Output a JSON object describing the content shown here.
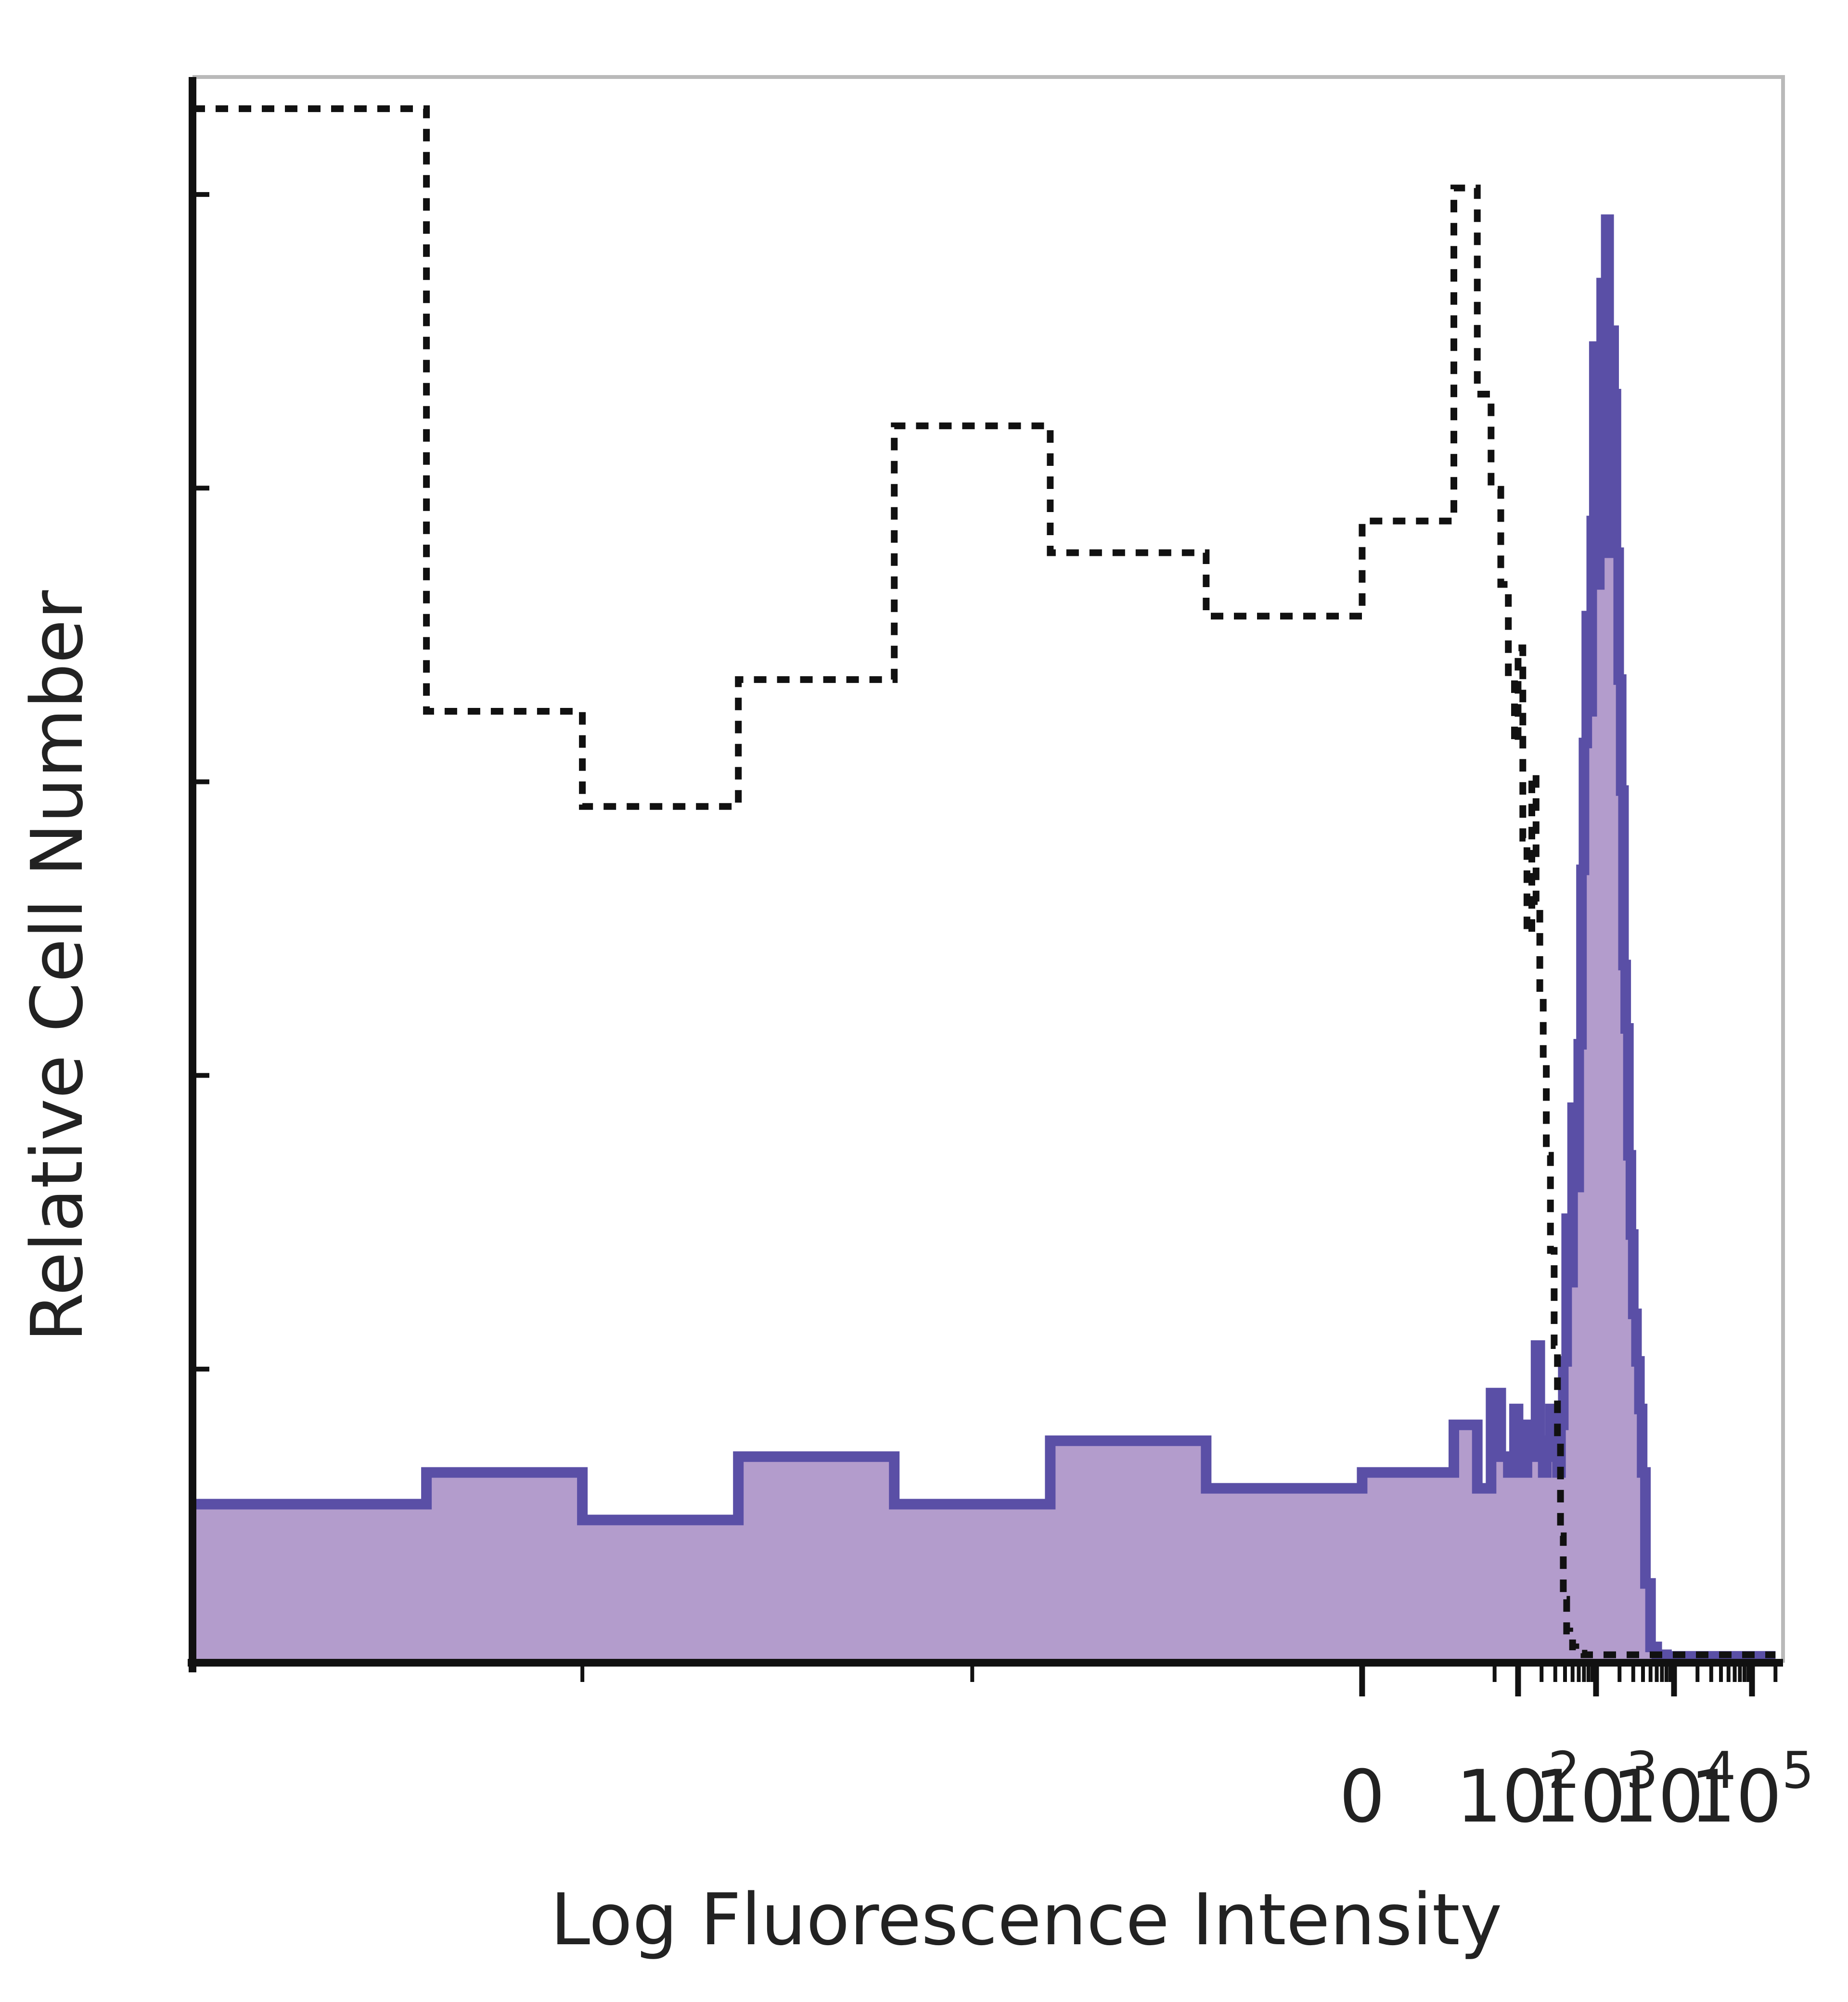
{
  "chart_data": {
    "type": "area",
    "title": "",
    "xlabel": "Log Fluorescence Intensity",
    "ylabel": "Relative Cell Number",
    "x_scale": "biexponential",
    "x_ticks": [
      {
        "value": 0,
        "base": "0",
        "exp": ""
      },
      {
        "value": 100,
        "base": "10",
        "exp": "2"
      },
      {
        "value": 1000,
        "base": "10",
        "exp": "3"
      },
      {
        "value": 10000,
        "base": "10",
        "exp": "4"
      },
      {
        "value": 100000,
        "base": "10",
        "exp": "5"
      }
    ],
    "xlim": [
      -150,
      250000
    ],
    "ylim": [
      0,
      100
    ],
    "grid": false,
    "legend": "none",
    "colors": {
      "stained_fill": "#b39ccc",
      "stained_line": "#5a4fa6",
      "control_line": "#111111",
      "axis": "#111111",
      "frame": "#b9b9b9"
    },
    "series": [
      {
        "style": "filled-solid",
        "x": [
          -150,
          -120,
          -100,
          -80,
          -60,
          -40,
          -20,
          0,
          15,
          30,
          45,
          60,
          75,
          90,
          100,
          115,
          130,
          150,
          170,
          190,
          210,
          230,
          260,
          290,
          320,
          350,
          380,
          420,
          460,
          500,
          550,
          600,
          650,
          700,
          760,
          820,
          880,
          950,
          1020,
          1100,
          1180,
          1260,
          1350,
          1450,
          1560,
          1680,
          1800,
          1950,
          2100,
          2250,
          2400,
          2600,
          2800,
          3000,
          3300,
          3600,
          3900,
          4300,
          5000,
          6000,
          8000,
          10000,
          20000,
          50000,
          100000,
          200000
        ],
        "y": [
          10,
          12,
          9,
          13,
          10,
          14,
          11,
          12,
          15,
          11,
          17,
          13,
          12,
          16,
          14,
          12,
          15,
          13,
          20,
          14,
          12,
          13,
          16,
          13,
          12,
          15,
          19,
          28,
          24,
          35,
          30,
          39,
          50,
          58,
          66,
          60,
          72,
          83,
          68,
          78,
          87,
          70,
          91,
          75,
          84,
          80,
          70,
          62,
          55,
          44,
          40,
          32,
          27,
          22,
          19,
          16,
          12,
          5,
          1,
          0.5,
          0.4,
          0.4,
          0.4,
          0.4,
          0.4,
          0.4
        ]
      },
      {
        "style": "dashed",
        "x": [
          -150,
          -120,
          -100,
          -80,
          -60,
          -40,
          -20,
          0,
          15,
          30,
          45,
          60,
          75,
          90,
          100,
          115,
          130,
          150,
          170,
          190,
          210,
          230,
          260,
          290,
          320,
          350,
          380,
          420,
          460,
          500,
          550,
          600,
          700,
          800,
          1000,
          2000,
          5000,
          10000,
          20000,
          50000,
          100000,
          200000
        ],
        "y": [
          98,
          60,
          54,
          62,
          78,
          70,
          66,
          72,
          93,
          80,
          74,
          68,
          62,
          58,
          64,
          52,
          46,
          56,
          48,
          42,
          38,
          32,
          26,
          20,
          14,
          8,
          4,
          2,
          1.5,
          1,
          0.8,
          0.6,
          0.5,
          0.5,
          0.5,
          0.5,
          0.5,
          0.5,
          0.5,
          0.5,
          0.5,
          0.5
        ]
      }
    ]
  }
}
